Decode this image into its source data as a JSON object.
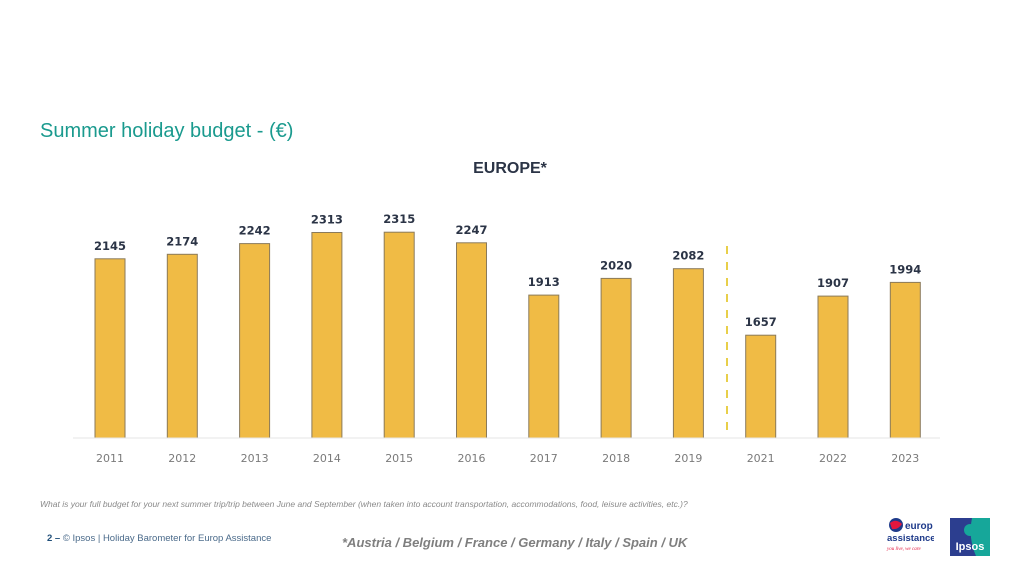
{
  "header": {
    "title": "Summer holiday budget  - (€)",
    "subtitle": "EUROPE*"
  },
  "chart_data": {
    "type": "bar",
    "title": "EUROPE*",
    "xlabel": "",
    "ylabel": "",
    "categories": [
      "2011",
      "2012",
      "2013",
      "2014",
      "2015",
      "2016",
      "2017",
      "2018",
      "2019",
      "2021",
      "2022",
      "2023"
    ],
    "values": [
      2145,
      2174,
      2242,
      2313,
      2315,
      2247,
      1913,
      2020,
      2082,
      1657,
      1907,
      1994
    ],
    "ylim": [
      1000,
      2400
    ],
    "grid": false,
    "bar_color": "#f0bb45",
    "bar_edge_color": "#8a7a5a",
    "label_color": "#2b3446",
    "tick_color": "#7a7a7a",
    "divider_after_category": "2019",
    "divider_color": "#e8cf4a"
  },
  "footnote": "What is your full budget for your next summer trip/trip between June and September (when taken into account transportation, accommodations, food, leisure activities, etc.)?",
  "footer": {
    "page_number": "2 –",
    "source": "© Ipsos | Holiday Barometer for Europ Assistance",
    "countries_note": "*Austria / Belgium / France / Germany / Italy / Spain / UK"
  },
  "logos": {
    "europ_assistance": {
      "lines": [
        "europ",
        "assistance",
        "you live, we care"
      ],
      "color": "#1e3a8a",
      "accent": "#e3173e"
    },
    "ipsos": {
      "text": "Ipsos",
      "color_a": "#2c3e8f",
      "color_b": "#16a79a"
    }
  }
}
